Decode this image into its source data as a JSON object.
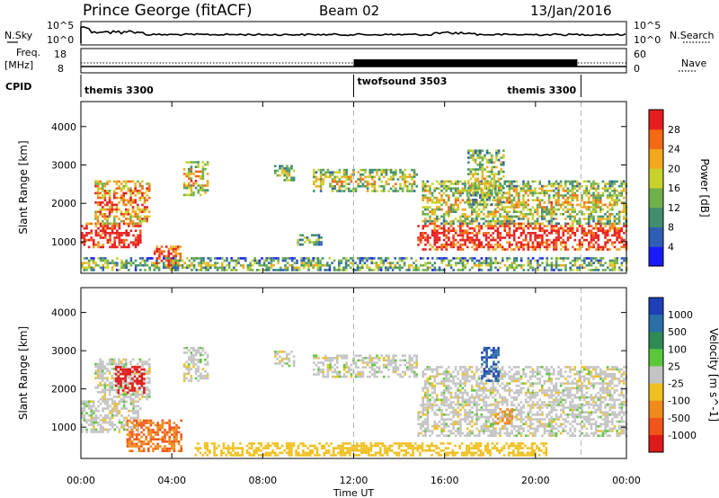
{
  "header": {
    "station": "Prince George (fitACF)",
    "beam": "Beam 02",
    "date": "13/Jan/2016"
  },
  "top_panels": {
    "nsky_label": "N.Sky",
    "nsky_ticks": [
      "10^5",
      "10^0"
    ],
    "nsearch_label": "N.Search",
    "freq_label": "Freq.",
    "freq_unit": "[MHz]",
    "freq_ticks": [
      "18",
      "8"
    ],
    "nave_label": "Nave",
    "nave_ticks": [
      "60",
      "0"
    ],
    "cpid_label": "CPID",
    "cpid_segments": [
      {
        "label": "themis 3300",
        "start_hour": 0,
        "end_hour": 12
      },
      {
        "label": "twofsound 3503",
        "start_hour": 12,
        "end_hour": 22
      },
      {
        "label": "themis 3300",
        "start_hour": 22,
        "end_hour": 24
      }
    ]
  },
  "colors": {
    "power_scale": [
      "#1a1aff",
      "#2f5fb4",
      "#3f8f6e",
      "#6fb04a",
      "#c8d22c",
      "#f2a81c",
      "#f26a14",
      "#e81e1e"
    ],
    "velocity_scale": [
      "#1f3fb8",
      "#2a6fa8",
      "#2f8a55",
      "#5ac83a",
      "#c4c4c4",
      "#f0c020",
      "#f08a1a",
      "#f0561a",
      "#e01a1a"
    ],
    "dashed_line": "#b4b4b4"
  },
  "chart_data": [
    {
      "type": "heatmap",
      "title": "Power",
      "xlabel": "",
      "ylabel": "Slant Range [km]",
      "xlim": [
        0,
        24
      ],
      "ylim": [
        180,
        4650
      ],
      "x_ticks": [
        "00:00",
        "04:00",
        "08:00",
        "12:00",
        "16:00",
        "20:00",
        "00:00"
      ],
      "y_ticks": [
        1000,
        2000,
        3000,
        4000
      ],
      "colorbar": {
        "label": "Power [dB]",
        "ticks": [
          4,
          8,
          12,
          16,
          20,
          24,
          28
        ]
      },
      "dashed_times": [
        12,
        22
      ],
      "echo_regions": [
        {
          "t0": 0.0,
          "t1": 2.6,
          "r0": 850,
          "r1": 1500,
          "level": 0.85
        },
        {
          "t0": 0.6,
          "t1": 3.0,
          "r0": 1500,
          "r1": 2600,
          "level": 0.6
        },
        {
          "t0": 3.2,
          "t1": 4.4,
          "r0": 350,
          "r1": 900,
          "level": 0.75
        },
        {
          "t0": 4.5,
          "t1": 5.6,
          "r0": 2200,
          "r1": 3100,
          "level": 0.45
        },
        {
          "t0": 8.5,
          "t1": 9.4,
          "r0": 2600,
          "r1": 3000,
          "level": 0.3
        },
        {
          "t0": 9.5,
          "t1": 10.6,
          "r0": 900,
          "r1": 1200,
          "level": 0.2
        },
        {
          "t0": 10.2,
          "t1": 14.8,
          "r0": 2300,
          "r1": 2900,
          "level": 0.35
        },
        {
          "t0": 14.8,
          "t1": 24.0,
          "r0": 800,
          "r1": 1500,
          "level": 0.8
        },
        {
          "t0": 15.0,
          "t1": 24.0,
          "r0": 1500,
          "r1": 2600,
          "level": 0.4
        },
        {
          "t0": 17.0,
          "t1": 18.6,
          "r0": 2000,
          "r1": 3400,
          "level": 0.35
        },
        {
          "t0": 0.0,
          "t1": 24.0,
          "r0": 250,
          "r1": 600,
          "level": 0.25
        }
      ]
    },
    {
      "type": "heatmap",
      "title": "Velocity",
      "xlabel": "Time UT",
      "ylabel": "Slant Range [km]",
      "xlim": [
        0,
        24
      ],
      "ylim": [
        180,
        4650
      ],
      "x_ticks": [
        "00:00",
        "04:00",
        "08:00",
        "12:00",
        "16:00",
        "20:00",
        "00:00"
      ],
      "y_ticks": [
        1000,
        2000,
        3000,
        4000
      ],
      "colorbar": {
        "label": "Velocity [m s^-1]",
        "ticks": [
          "1000",
          "500",
          "100",
          "25",
          "-25",
          "-100",
          "-500",
          "-1000"
        ]
      },
      "dashed_times": [
        12,
        22
      ],
      "echo_regions": [
        {
          "t0": 0.0,
          "t1": 2.6,
          "r0": 900,
          "r1": 1700,
          "v": 0
        },
        {
          "t0": 0.6,
          "t1": 3.0,
          "r0": 1700,
          "r1": 2800,
          "v": 0
        },
        {
          "t0": 1.5,
          "t1": 2.8,
          "r0": 1900,
          "r1": 2600,
          "v": -800
        },
        {
          "t0": 2.0,
          "t1": 4.4,
          "r0": 350,
          "r1": 1200,
          "v": -300
        },
        {
          "t0": 4.5,
          "t1": 5.6,
          "r0": 2200,
          "r1": 3100,
          "v": 0
        },
        {
          "t0": 8.5,
          "t1": 9.4,
          "r0": 2600,
          "r1": 3000,
          "v": 0
        },
        {
          "t0": 10.2,
          "t1": 14.8,
          "r0": 2300,
          "r1": 2900,
          "v": 0
        },
        {
          "t0": 14.8,
          "t1": 24.0,
          "r0": 800,
          "r1": 1600,
          "v": 0
        },
        {
          "t0": 15.0,
          "t1": 24.0,
          "r0": 1600,
          "r1": 2600,
          "v": 0
        },
        {
          "t0": 17.6,
          "t1": 18.4,
          "r0": 2200,
          "r1": 3100,
          "v": 700
        },
        {
          "t0": 18.2,
          "t1": 19.0,
          "r0": 1100,
          "r1": 1500,
          "v": -200
        },
        {
          "t0": 5.0,
          "t1": 20.5,
          "r0": 250,
          "r1": 600,
          "v": -60
        }
      ]
    }
  ]
}
